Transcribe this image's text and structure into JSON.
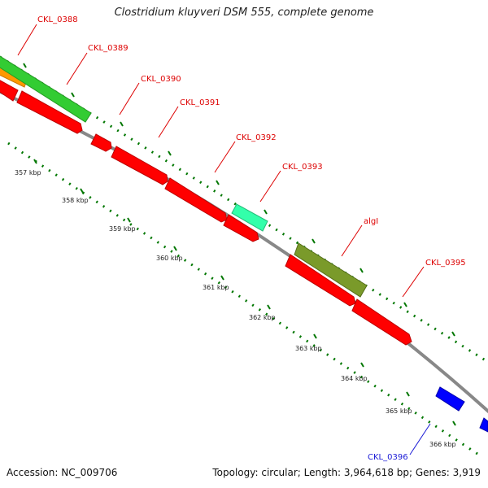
{
  "title": "Clostridium kluyveri DSM 555, complete genome",
  "footer": {
    "accession": "Accession: NC_009706",
    "topology": "Topology: circular; Length: 3,964,618 bp; Genes: 3,919"
  },
  "colors": {
    "forward_cds": "#ff0000",
    "reverse_cds": "#0000ff",
    "rna_cyan": "#33ffaa",
    "olive": "#7a9a2a",
    "green": "#33cc33",
    "orange": "#ff9900",
    "backbone": "#888888",
    "tick": "#007700",
    "label_red": "#dd0000",
    "label_blue": "#1a1ad6"
  },
  "scale_labels": [
    "357 kbp",
    "358 kbp",
    "359 kbp",
    "360 kbp",
    "361 kbp",
    "362 kbp",
    "363 kbp",
    "364 kbp",
    "365 kbp",
    "366 kbp"
  ],
  "gene_labels": [
    {
      "text": "CKL_0388",
      "color": "red"
    },
    {
      "text": "CKL_0389",
      "color": "red"
    },
    {
      "text": "CKL_0390",
      "color": "red"
    },
    {
      "text": "CKL_0391",
      "color": "red"
    },
    {
      "text": "CKL_0392",
      "color": "red"
    },
    {
      "text": "CKL_0393",
      "color": "red"
    },
    {
      "text": "algI",
      "color": "red"
    },
    {
      "text": "CKL_0395",
      "color": "red"
    },
    {
      "text": "CKL_0396",
      "color": "blue"
    }
  ]
}
